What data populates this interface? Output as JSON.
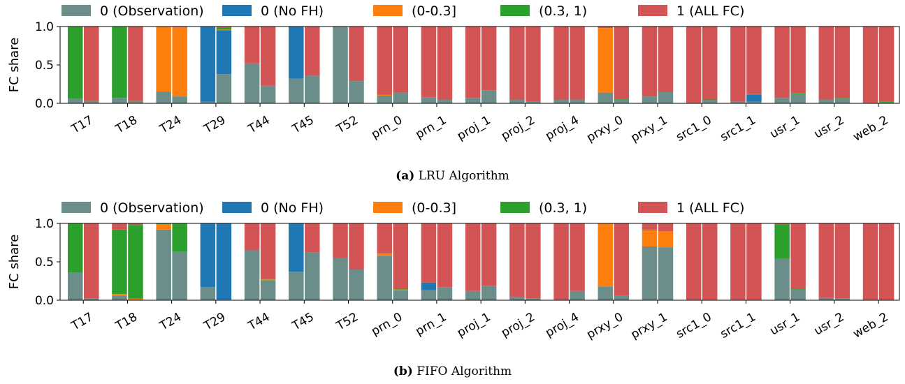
{
  "chart_data": [
    {
      "type": "bar",
      "stacked": true,
      "caption_label": "(a)",
      "caption_text": "LRU Algorithm",
      "ylabel": "FC share",
      "ylim": [
        0,
        1.0
      ],
      "yticks": [
        "0.0",
        "0.5",
        "1.0"
      ],
      "legend": "top",
      "categories": [
        "T17",
        "T18",
        "T24",
        "T29",
        "T44",
        "T45",
        "T52",
        "prn_0",
        "prn_1",
        "proj_1",
        "proj_2",
        "proj_4",
        "prxy_0",
        "prxy_1",
        "src1_0",
        "src1_1",
        "usr_1",
        "usr_2",
        "web_2"
      ],
      "series": [
        {
          "name": "0 (Observation)",
          "color": "#6b8e8b",
          "values": [
            [
              0.06,
              0.02
            ],
            [
              0.07,
              0.02
            ],
            [
              0.15,
              0.09
            ],
            [
              0.02,
              0.38
            ],
            [
              0.52,
              0.23
            ],
            [
              0.32,
              0.36
            ],
            [
              1.0,
              0.29
            ],
            [
              0.1,
              0.14
            ],
            [
              0.08,
              0.05
            ],
            [
              0.07,
              0.17
            ],
            [
              0.05,
              0.02
            ],
            [
              0.05,
              0.05
            ],
            [
              0.14,
              0.05
            ],
            [
              0.09,
              0.15
            ],
            [
              0.01,
              0.04
            ],
            [
              0.02,
              0.02
            ],
            [
              0.07,
              0.12
            ],
            [
              0.05,
              0.06
            ],
            [
              0.01,
              0.01
            ]
          ]
        },
        {
          "name": "0 (No FH)",
          "color": "#1f77b4",
          "values": [
            [
              0,
              0
            ],
            [
              0,
              0
            ],
            [
              0,
              0
            ],
            [
              0.98,
              0.57
            ],
            [
              0,
              0
            ],
            [
              0.68,
              0
            ],
            [
              0,
              0
            ],
            [
              0,
              0
            ],
            [
              0,
              0
            ],
            [
              0,
              0
            ],
            [
              0,
              0
            ],
            [
              0,
              0
            ],
            [
              0,
              0
            ],
            [
              0,
              0
            ],
            [
              0,
              0
            ],
            [
              0,
              0.09
            ],
            [
              0,
              0
            ],
            [
              0,
              0
            ],
            [
              0,
              0
            ]
          ]
        },
        {
          "name": "(0-0.3]",
          "color": "#ff7f0e",
          "values": [
            [
              0,
              0
            ],
            [
              0,
              0
            ],
            [
              0.85,
              0.9
            ],
            [
              0,
              0.01
            ],
            [
              0,
              0
            ],
            [
              0,
              0
            ],
            [
              0,
              0
            ],
            [
              0.01,
              0
            ],
            [
              0,
              0
            ],
            [
              0,
              0
            ],
            [
              0,
              0
            ],
            [
              0,
              0
            ],
            [
              0.84,
              0
            ],
            [
              0,
              0
            ],
            [
              0,
              0
            ],
            [
              0,
              0
            ],
            [
              0,
              0
            ],
            [
              0,
              0
            ],
            [
              0,
              0
            ]
          ]
        },
        {
          "name": "(0.3, 1)",
          "color": "#2ca02c",
          "values": [
            [
              0.94,
              0.01
            ],
            [
              0.93,
              0.01
            ],
            [
              0,
              0
            ],
            [
              0,
              0.03
            ],
            [
              0,
              0
            ],
            [
              0,
              0
            ],
            [
              0,
              0
            ],
            [
              0,
              0
            ],
            [
              0,
              0
            ],
            [
              0,
              0
            ],
            [
              0,
              0
            ],
            [
              0,
              0
            ],
            [
              0,
              0.01
            ],
            [
              0,
              0
            ],
            [
              0,
              0.01
            ],
            [
              0,
              0.01
            ],
            [
              0,
              0.01
            ],
            [
              0,
              0.01
            ],
            [
              0,
              0.01
            ]
          ]
        },
        {
          "name": "1 (ALL FC)",
          "color": "#d35454",
          "values": [
            [
              0,
              0.97
            ],
            [
              0,
              0.97
            ],
            [
              0,
              0.01
            ],
            [
              0,
              0.01
            ],
            [
              0.48,
              0.77
            ],
            [
              0,
              0.64
            ],
            [
              0,
              0.71
            ],
            [
              0.89,
              0.86
            ],
            [
              0.92,
              0.95
            ],
            [
              0.93,
              0.83
            ],
            [
              0.95,
              0.98
            ],
            [
              0.95,
              0.95
            ],
            [
              0.02,
              0.94
            ],
            [
              0.91,
              0.85
            ],
            [
              0.99,
              0.95
            ],
            [
              0.98,
              0.88
            ],
            [
              0.93,
              0.87
            ],
            [
              0.95,
              0.93
            ],
            [
              0.99,
              0.98
            ]
          ]
        }
      ]
    },
    {
      "type": "bar",
      "stacked": true,
      "caption_label": "(b)",
      "caption_text": "FIFO Algorithm",
      "ylabel": "FC share",
      "ylim": [
        0,
        1.0
      ],
      "yticks": [
        "0.0",
        "0.5",
        "1.0"
      ],
      "legend": "top",
      "categories": [
        "T17",
        "T18",
        "T24",
        "T29",
        "T44",
        "T45",
        "T52",
        "prn_0",
        "prn_1",
        "proj_1",
        "proj_2",
        "proj_4",
        "prxy_0",
        "prxy_1",
        "src1_0",
        "src1_1",
        "usr_1",
        "usr_2",
        "web_2"
      ],
      "series": [
        {
          "name": "0 (Observation)",
          "color": "#6b8e8b",
          "values": [
            [
              0.36,
              0.02
            ],
            [
              0.06,
              0.01
            ],
            [
              0.92,
              0.63
            ],
            [
              0.17,
              0.01
            ],
            [
              0.65,
              0.26
            ],
            [
              0.37,
              0.62
            ],
            [
              0.55,
              0.4
            ],
            [
              0.58,
              0.13
            ],
            [
              0.13,
              0.17
            ],
            [
              0.12,
              0.19
            ],
            [
              0.04,
              0.02
            ],
            [
              0.01,
              0.12
            ],
            [
              0.18,
              0.06
            ],
            [
              0.7,
              0.69
            ],
            [
              0.01,
              0.01
            ],
            [
              0.01,
              0.01
            ],
            [
              0.54,
              0.14
            ],
            [
              0.03,
              0.02
            ],
            [
              0.01,
              0.01
            ]
          ]
        },
        {
          "name": "0 (No FH)",
          "color": "#1f77b4",
          "values": [
            [
              0,
              0
            ],
            [
              0,
              0
            ],
            [
              0,
              0
            ],
            [
              0.83,
              0.99
            ],
            [
              0,
              0
            ],
            [
              0.63,
              0
            ],
            [
              0,
              0
            ],
            [
              0,
              0
            ],
            [
              0.1,
              0
            ],
            [
              0,
              0
            ],
            [
              0,
              0
            ],
            [
              0,
              0
            ],
            [
              0,
              0
            ],
            [
              0,
              0
            ],
            [
              0,
              0
            ],
            [
              0,
              0
            ],
            [
              0,
              0
            ],
            [
              0,
              0
            ],
            [
              0,
              0
            ]
          ]
        },
        {
          "name": "(0-0.3]",
          "color": "#ff7f0e",
          "values": [
            [
              0,
              0
            ],
            [
              0.02,
              0.01
            ],
            [
              0.07,
              0
            ],
            [
              0,
              0
            ],
            [
              0,
              0.01
            ],
            [
              0,
              0
            ],
            [
              0,
              0
            ],
            [
              0.03,
              0.01
            ],
            [
              0,
              0
            ],
            [
              0,
              0
            ],
            [
              0,
              0
            ],
            [
              0,
              0
            ],
            [
              0.82,
              0
            ],
            [
              0.21,
              0.21
            ],
            [
              0,
              0
            ],
            [
              0,
              0
            ],
            [
              0,
              0
            ],
            [
              0,
              0
            ],
            [
              0,
              0
            ]
          ]
        },
        {
          "name": "(0.3, 1)",
          "color": "#2ca02c",
          "values": [
            [
              0.64,
              0
            ],
            [
              0.84,
              0.96
            ],
            [
              0.01,
              0.37
            ],
            [
              0,
              0
            ],
            [
              0,
              0.01
            ],
            [
              0,
              0
            ],
            [
              0,
              0
            ],
            [
              0,
              0.01
            ],
            [
              0,
              0
            ],
            [
              0,
              0
            ],
            [
              0,
              0
            ],
            [
              0,
              0
            ],
            [
              0,
              0
            ],
            [
              0.01,
              0
            ],
            [
              0,
              0
            ],
            [
              0,
              0
            ],
            [
              0.45,
              0.01
            ],
            [
              0,
              0
            ],
            [
              0,
              0
            ]
          ]
        },
        {
          "name": "1 (ALL FC)",
          "color": "#d35454",
          "values": [
            [
              0,
              0.98
            ],
            [
              0.08,
              0.02
            ],
            [
              0,
              0
            ],
            [
              0,
              0
            ],
            [
              0.35,
              0.72
            ],
            [
              0,
              0.38
            ],
            [
              0.45,
              0.6
            ],
            [
              0.39,
              0.85
            ],
            [
              0.77,
              0.83
            ],
            [
              0.88,
              0.81
            ],
            [
              0.96,
              0.98
            ],
            [
              0.99,
              0.88
            ],
            [
              0,
              0.94
            ],
            [
              0.08,
              0.1
            ],
            [
              0.99,
              0.99
            ],
            [
              0.99,
              0.99
            ],
            [
              0.01,
              0.85
            ],
            [
              0.97,
              0.98
            ],
            [
              0.99,
              0.99
            ]
          ]
        }
      ]
    }
  ]
}
